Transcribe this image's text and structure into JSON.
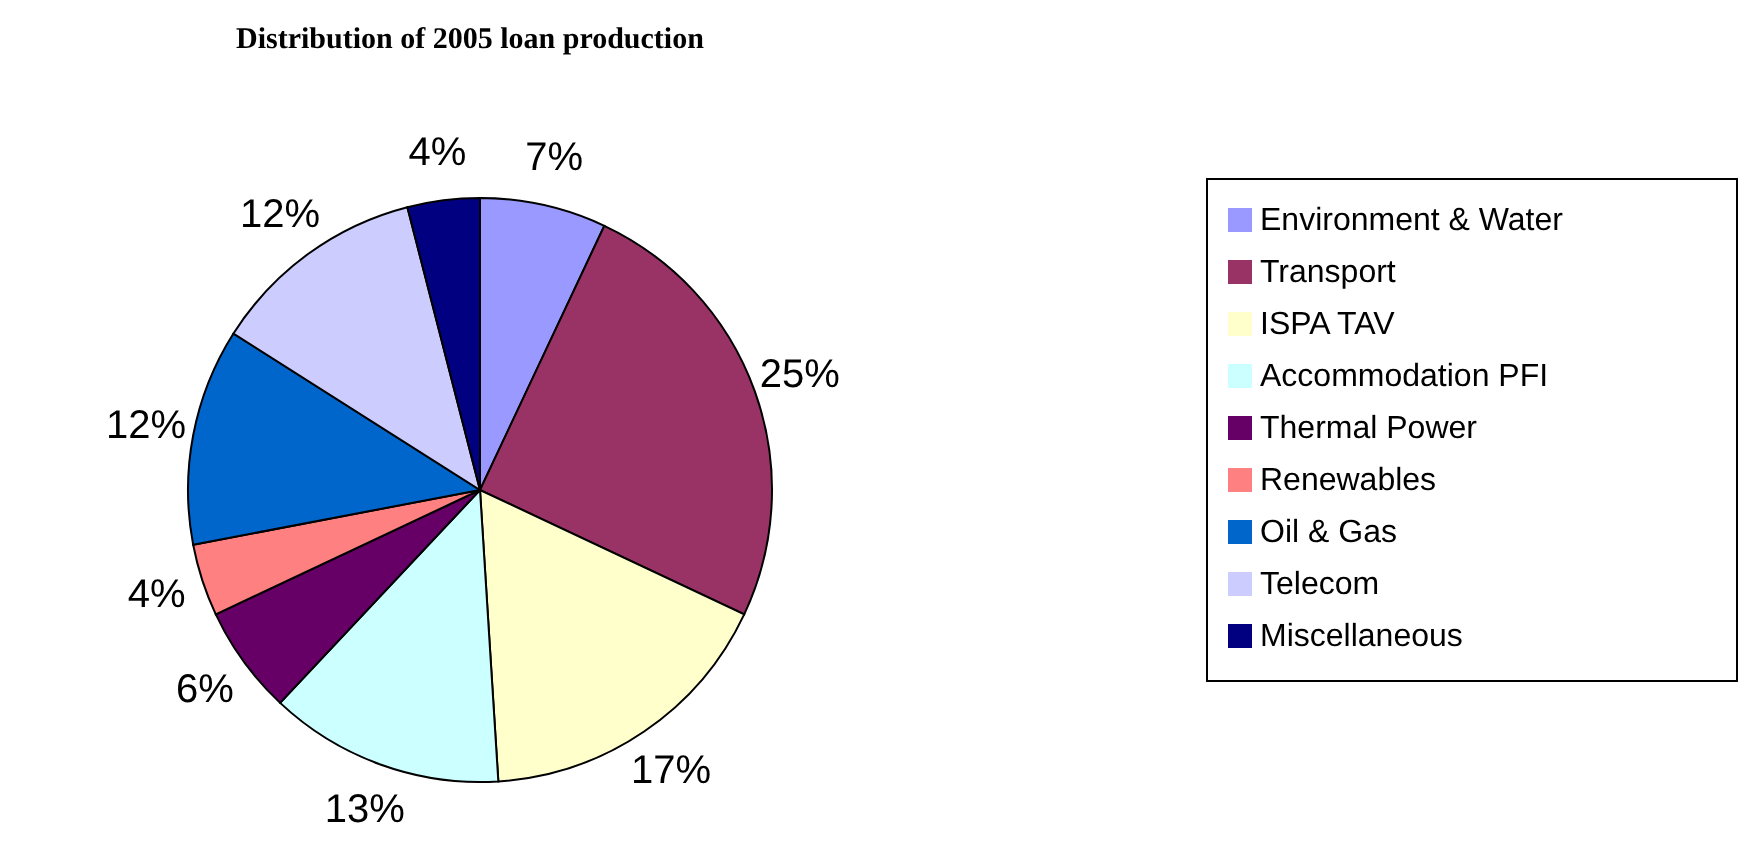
{
  "chart_data": {
    "type": "pie",
    "title": "Distribution of 2005 loan production",
    "categories": [
      "Environment & Water",
      "Transport",
      "ISPA TAV",
      "Accommodation PFI",
      "Thermal Power",
      "Renewables",
      "Oil & Gas",
      "Telecom",
      "Miscellaneous"
    ],
    "values": [
      7,
      25,
      17,
      13,
      6,
      4,
      12,
      12,
      4
    ],
    "value_labels": [
      "7%",
      "25%",
      "17%",
      "13%",
      "6%",
      "4%",
      "12%",
      "12%",
      "4%"
    ],
    "colors": [
      "#9999ff",
      "#993366",
      "#ffffcc",
      "#ccffff",
      "#660066",
      "#ff8080",
      "#0066cc",
      "#ccccff",
      "#000080"
    ],
    "legend": "right"
  }
}
